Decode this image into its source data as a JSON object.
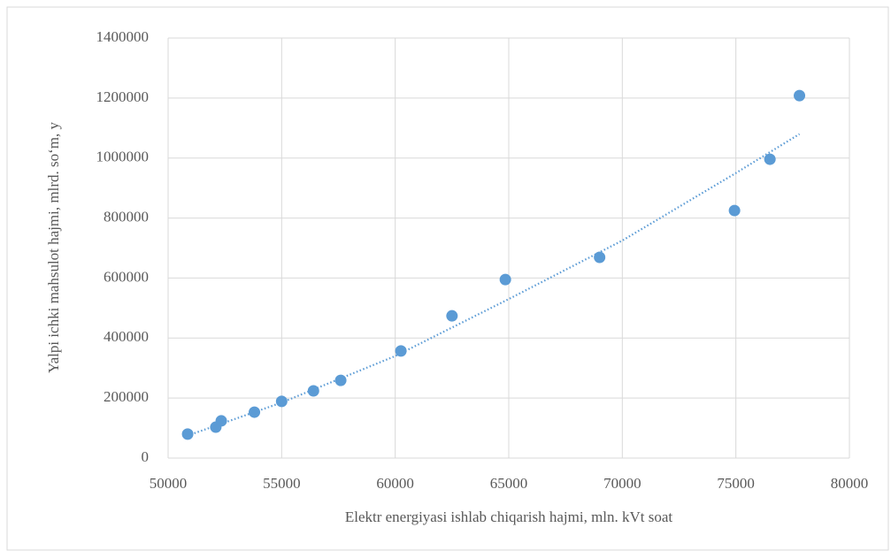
{
  "chart_data": {
    "type": "scatter",
    "xlabel": "Elektr  energiyasi ishlab chiqarish hajmi,  mln.  kVt  soat",
    "ylabel": "Yalpi  ichki  mahsulot hajmi,  mlrd.  so‘m,  y",
    "series": [
      {
        "color": "#5b9bd5",
        "x": [
          50860,
          52100,
          52340,
          53800,
          55000,
          56400,
          57600,
          60250,
          62500,
          64850,
          69000,
          74940,
          76500,
          77800
        ],
        "values": [
          80000,
          103000,
          124000,
          153000,
          189000,
          224000,
          259000,
          357000,
          474000,
          595000,
          669000,
          825000,
          996000,
          1208000
        ]
      }
    ],
    "trendline": {
      "color": "#5b9bd5",
      "x": [
        50860,
        55000,
        60000,
        65000,
        70000,
        75000,
        77800
      ],
      "values": [
        75000,
        185000,
        340000,
        530000,
        725000,
        950000,
        1080000
      ]
    },
    "xlim": [
      50000,
      80000
    ],
    "xticks": [
      50000,
      55000,
      60000,
      65000,
      70000,
      75000,
      80000
    ],
    "ylim": [
      0,
      1400000
    ],
    "yticks": [
      0,
      200000,
      400000,
      600000,
      800000,
      1000000,
      1200000,
      1400000
    ],
    "grid": true
  }
}
